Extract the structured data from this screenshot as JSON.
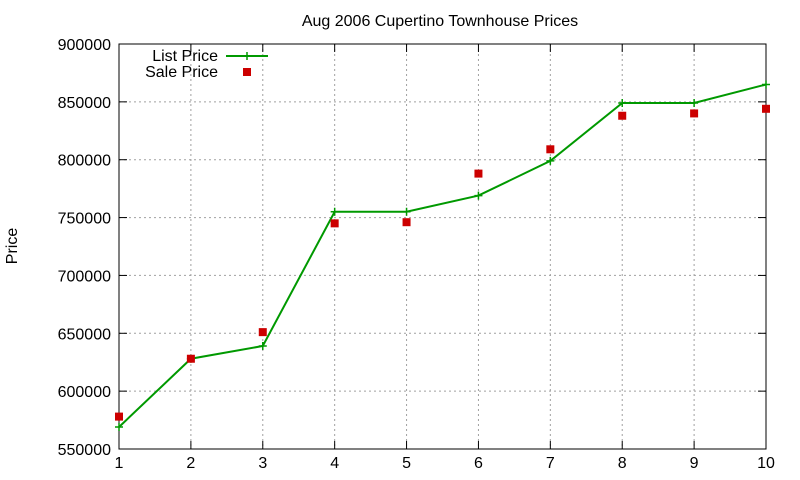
{
  "chart_data": {
    "type": "line",
    "title": "Aug 2006 Cupertino Townhouse Prices",
    "xlabel": "",
    "ylabel": "Price",
    "x": [
      1,
      2,
      3,
      4,
      5,
      6,
      7,
      8,
      9,
      10
    ],
    "xlim": [
      1,
      10
    ],
    "ylim": [
      550000,
      900000
    ],
    "x_ticks": [
      "1",
      "2",
      "3",
      "4",
      "5",
      "6",
      "7",
      "8",
      "9",
      "10"
    ],
    "y_ticks": [
      "550000",
      "600000",
      "650000",
      "700000",
      "750000",
      "800000",
      "850000",
      "900000"
    ],
    "grid": true,
    "legend_position": "top-left",
    "series": [
      {
        "name": "List Price",
        "style": "line+cross",
        "color": "#009900",
        "values": [
          569000,
          628000,
          639000,
          755000,
          755000,
          769000,
          799000,
          849000,
          849000,
          865000
        ]
      },
      {
        "name": "Sale Price",
        "style": "square-marker",
        "color": "#cc0000",
        "values": [
          578000,
          628000,
          651000,
          745000,
          746000,
          788000,
          809000,
          838000,
          840000,
          844000
        ]
      }
    ]
  }
}
